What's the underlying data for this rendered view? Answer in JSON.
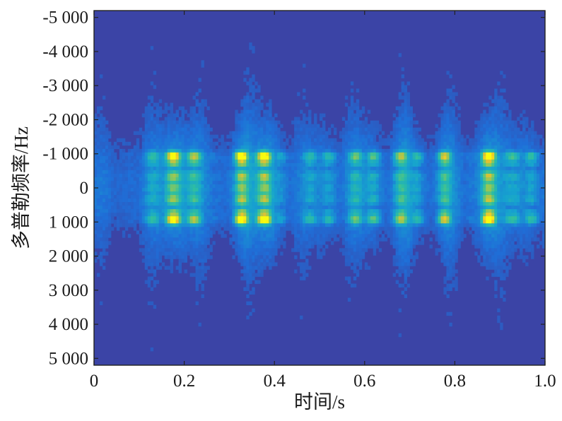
{
  "chart_data": {
    "type": "heatmap",
    "title": "",
    "xlabel": "时间/s",
    "ylabel": "多普勒频率/Hz",
    "xlim": [
      0,
      1.0
    ],
    "ylim": [
      -5200,
      5200
    ],
    "y_reversed": true,
    "x_ticks": [
      {
        "value": 0,
        "label": "0"
      },
      {
        "value": 0.2,
        "label": "0.2"
      },
      {
        "value": 0.4,
        "label": "0.4"
      },
      {
        "value": 0.6,
        "label": "0.6"
      },
      {
        "value": 0.8,
        "label": "0.8"
      },
      {
        "value": 1.0,
        "label": "1.0"
      }
    ],
    "y_ticks": [
      {
        "value": -5000,
        "label": "-5 000"
      },
      {
        "value": -4000,
        "label": "-4 000"
      },
      {
        "value": -3000,
        "label": "-3 000"
      },
      {
        "value": -2000,
        "label": "-2 000"
      },
      {
        "value": -1000,
        "label": "-1 000"
      },
      {
        "value": 0,
        "label": "0"
      },
      {
        "value": 1000,
        "label": "1 000"
      },
      {
        "value": 2000,
        "label": "2 000"
      },
      {
        "value": 3000,
        "label": "3 000"
      },
      {
        "value": 4000,
        "label": "4 000"
      },
      {
        "value": 5000,
        "label": "5 000"
      }
    ],
    "colormap": "parula",
    "background_color": "#3b44a6",
    "colormap_stops": [
      "#352a87",
      "#3b44a6",
      "#1f6fd8",
      "#16a3cf",
      "#2fbfa0",
      "#8ec85a",
      "#e7c12f",
      "#f9fb0e"
    ],
    "bursts": [
      {
        "t": 0.185,
        "width": 0.08,
        "intensity": 0.85
      },
      {
        "t": 0.33,
        "width": 0.035,
        "intensity": 0.9
      },
      {
        "t": 0.385,
        "width": 0.04,
        "intensity": 0.98
      },
      {
        "t": 0.5,
        "width": 0.05,
        "intensity": 0.45
      },
      {
        "t": 0.6,
        "width": 0.05,
        "intensity": 0.6
      },
      {
        "t": 0.695,
        "width": 0.04,
        "intensity": 0.75
      },
      {
        "t": 0.78,
        "width": 0.035,
        "intensity": 0.6
      },
      {
        "t": 0.875,
        "width": 0.04,
        "intensity": 0.95
      },
      {
        "t": 0.95,
        "width": 0.05,
        "intensity": 0.5
      }
    ],
    "doppler_bands_hz": [
      -1000,
      -800,
      -400,
      0,
      400,
      800,
      1000
    ],
    "grid": false
  }
}
